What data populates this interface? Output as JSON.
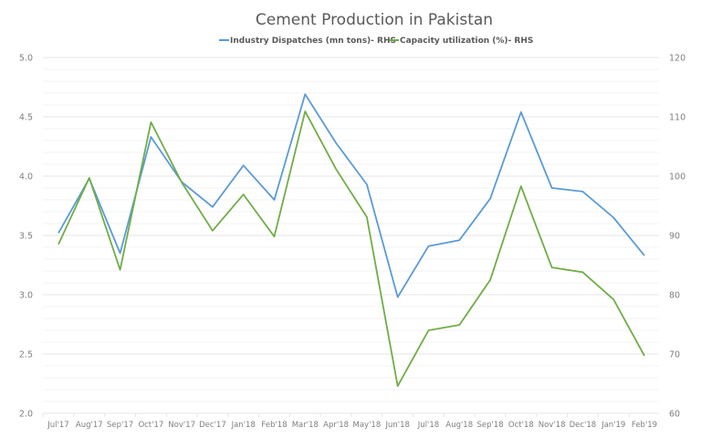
{
  "chart_data": {
    "type": "line",
    "title": "Cement Production in Pakistan",
    "xlabel": "",
    "ylabel": "",
    "ylabel_right": "",
    "categories": [
      "Jul'17",
      "Aug'17",
      "Sep'17",
      "Oct'17",
      "Nov'17",
      "Dec'17",
      "Jan'18",
      "Feb'18",
      "Mar'18",
      "Apr'18",
      "May'18",
      "Jun'18",
      "Jul'18",
      "Aug'18",
      "Sep'18",
      "Oct'18",
      "Nov'18",
      "Dec'18",
      "Jan'19",
      "Feb'19"
    ],
    "series": [
      {
        "name": "Industry Dispatches (mn tons)- RHS",
        "axis": "left",
        "color": "#5b9bd5",
        "values": [
          3.52,
          3.98,
          3.35,
          4.33,
          3.95,
          3.74,
          4.09,
          3.8,
          4.69,
          4.28,
          3.93,
          2.98,
          3.41,
          3.46,
          3.81,
          4.54,
          3.9,
          3.87,
          3.65,
          3.33
        ]
      },
      {
        "name": "Capacity utilization (%)- RHS",
        "axis": "right",
        "color": "#70ad47",
        "values": [
          88.5,
          99.7,
          84.2,
          109.1,
          98.9,
          90.8,
          96.9,
          89.8,
          110.9,
          101.2,
          93.1,
          64.6,
          74.0,
          74.9,
          82.5,
          98.3,
          84.6,
          83.8,
          79.2,
          69.7
        ]
      }
    ],
    "ylim": [
      2.0,
      5.0
    ],
    "ylim_right": [
      60,
      120
    ],
    "yticks": [
      "5.0",
      "4.5",
      "4.0",
      "3.5",
      "3.0",
      "2.5",
      "2.0"
    ],
    "yticks_right": [
      "120",
      "110",
      "100",
      "90",
      "80",
      "70",
      "60"
    ],
    "grid": true,
    "legend_position": "top"
  }
}
